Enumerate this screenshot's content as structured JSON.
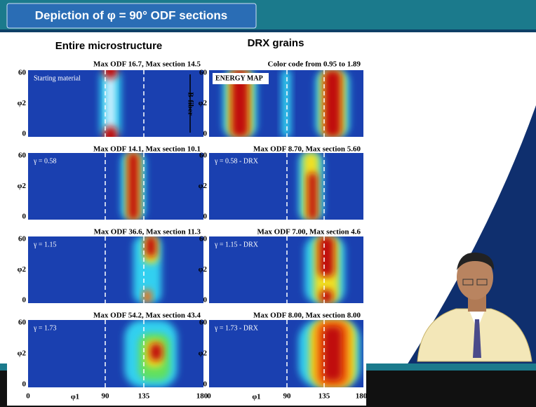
{
  "header": {
    "title": "Depiction of φ = 90° ODF sections"
  },
  "columns": [
    {
      "title": "Entire microstructure",
      "panels": [
        {
          "caption": "Max ODF 16.7, Max section 14.5",
          "label": "Starting material"
        },
        {
          "caption": "Max ODF 14.1, Max section 10.1",
          "label": "γ = 0.58"
        },
        {
          "caption": "Max ODF 36.6, Max section 11.3",
          "label": "γ = 1.15"
        },
        {
          "caption": "Max ODF 54.2, Max section 43.4",
          "label": "γ = 1.73"
        }
      ]
    },
    {
      "title": "DRX grains",
      "panels": [
        {
          "caption": "Color code from 0.95 to 1.89",
          "label": "ENERGY MAP"
        },
        {
          "caption": "Max ODF 8.70, Max section 5.60",
          "label": "γ = 0.58 - DRX"
        },
        {
          "caption": "Max ODF 7.00, Max section 4.6",
          "label": "γ = 1.15 - DRX"
        },
        {
          "caption": "Max ODF 8.00, Max section 8.00",
          "label": "γ = 1.73 - DRX"
        }
      ]
    }
  ],
  "axes": {
    "y_label": "φ2",
    "x_label": "φ1",
    "y_ticks": [
      "60",
      "0"
    ],
    "x_ticks": [
      "0",
      "90",
      "135",
      "180"
    ]
  },
  "annotation": "B-fiber"
}
